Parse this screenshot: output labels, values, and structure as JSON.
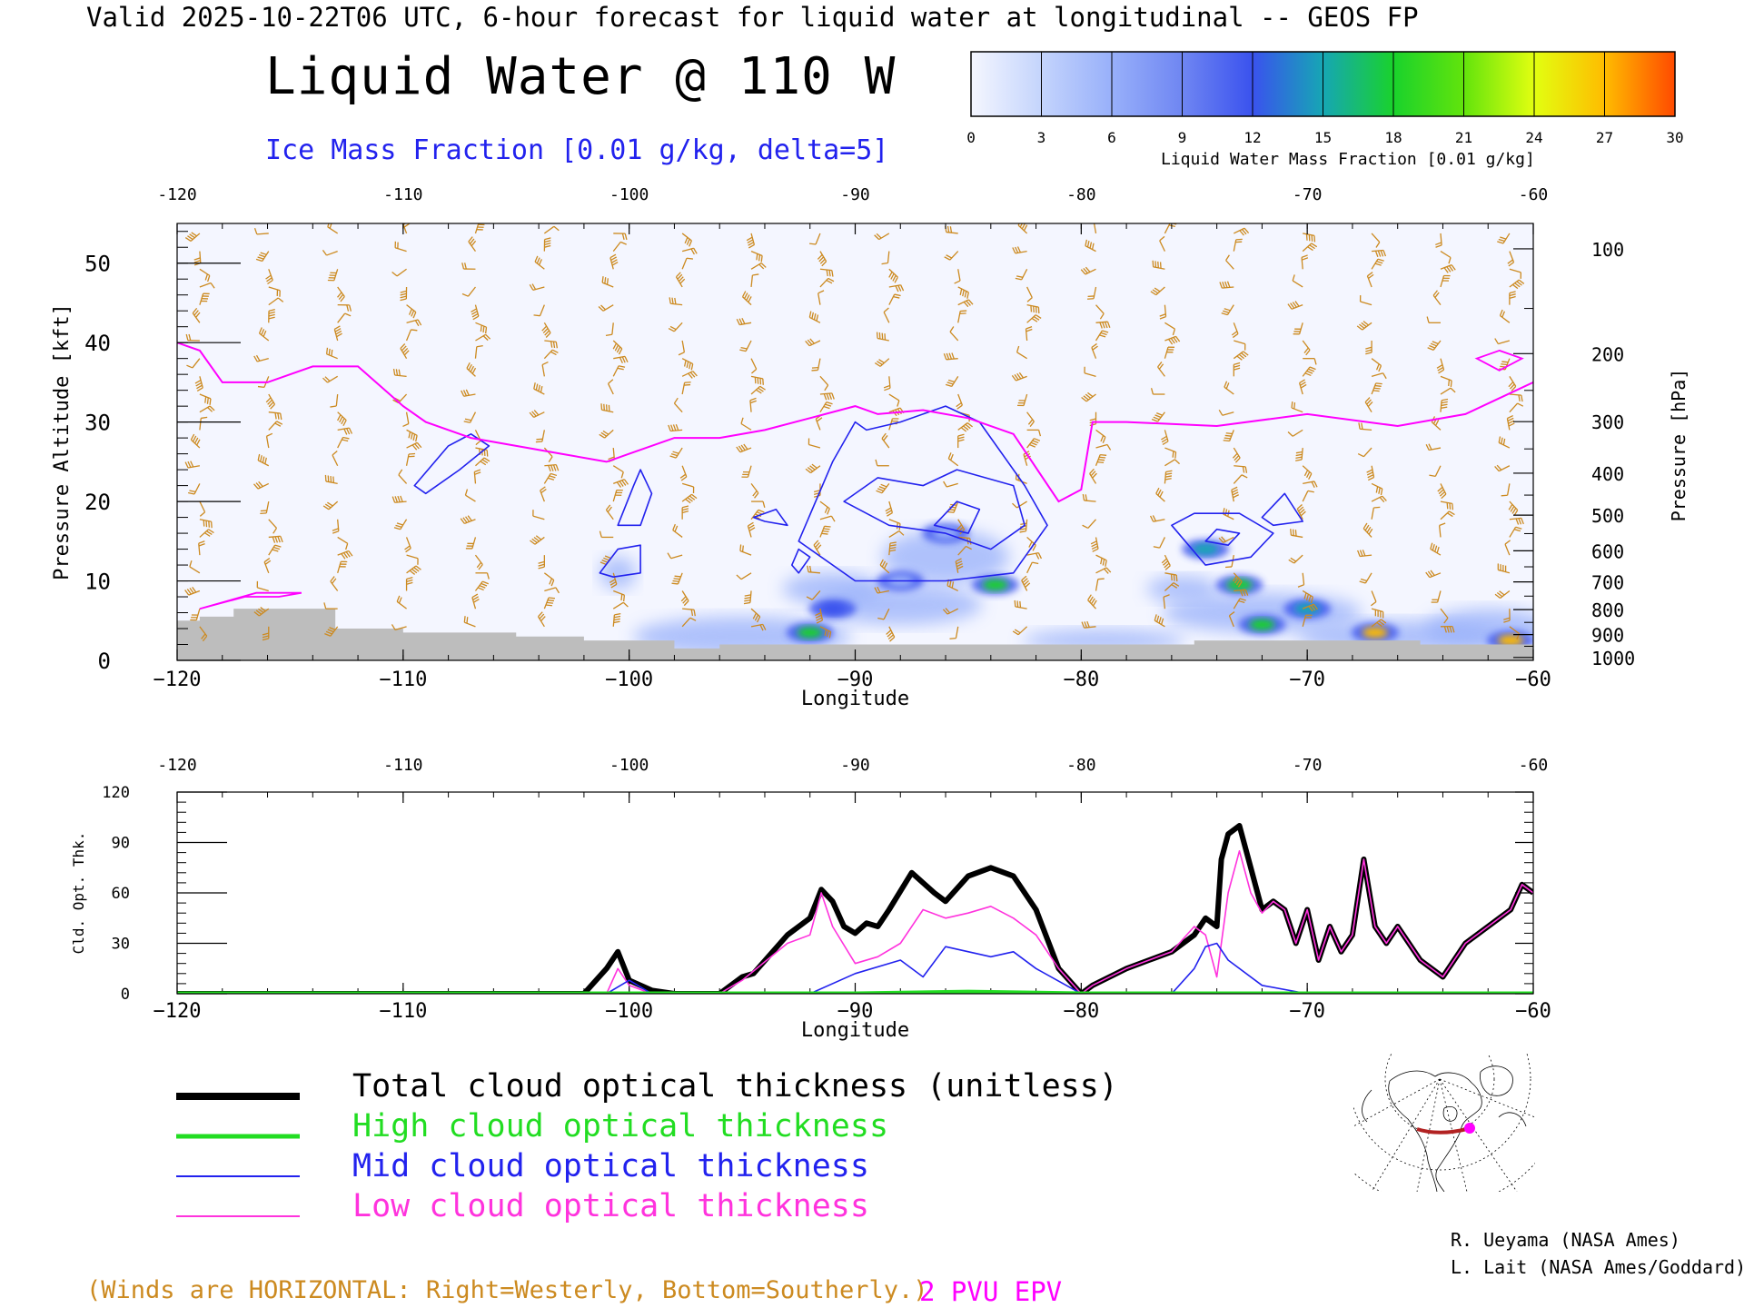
{
  "header": {
    "valid_line": "Valid 2025-10-22T06 UTC, 6-hour forecast for liquid water at longitudinal -- GEOS FP",
    "title": "Liquid Water @ 110 W",
    "subtitle": "Ice Mass Fraction [0.01 g/kg, delta=5]"
  },
  "colorbar": {
    "ticks": [
      "0",
      "3",
      "6",
      "9",
      "12",
      "15",
      "18",
      "21",
      "24",
      "27",
      "30"
    ],
    "label": "Liquid Water Mass Fraction [0.01 g/kg]",
    "colors": [
      "#f4f6ff",
      "#c4d4fc",
      "#98b0fa",
      "#6f86f2",
      "#3a52ee",
      "#16a6b4",
      "#19d22c",
      "#62e40c",
      "#e2ff10",
      "#ffbc00",
      "#ff4a00"
    ]
  },
  "upper_panel": {
    "top_tick_labels": [
      "-120",
      "-110",
      "-100",
      "-90",
      "-80",
      "-70",
      "-60"
    ],
    "bottom_tick_labels": [
      "−120",
      "−110",
      "−100",
      "−90",
      "−80",
      "−70",
      "−60"
    ],
    "xlabel": "Longitude",
    "ylabel_left": "Pressure Altitude [kft]",
    "left_tick_labels": [
      "0",
      "10",
      "20",
      "30",
      "40",
      "50"
    ],
    "ylabel_right": "Pressure [hPa]",
    "right_tick_labels": [
      "100",
      "200",
      "300",
      "400",
      "500",
      "600",
      "700",
      "800",
      "900",
      "1000"
    ]
  },
  "lower_panel": {
    "top_tick_labels": [
      "-120",
      "-110",
      "-100",
      "-90",
      "-80",
      "-70",
      "-60"
    ],
    "bottom_tick_labels": [
      "−120",
      "−110",
      "−100",
      "−90",
      "−80",
      "−70",
      "−60"
    ],
    "xlabel": "Longitude",
    "ylabel": "Cld. Opt. Thk.",
    "left_tick_labels": [
      "0",
      "30",
      "60",
      "90",
      "120"
    ]
  },
  "legend": [
    {
      "label": "Total cloud optical thickness (unitless)",
      "color": "#000000"
    },
    {
      "label": "High cloud optical thickness",
      "color": "#22dd22"
    },
    {
      "label": "Mid cloud optical thickness",
      "color": "#2222ee"
    },
    {
      "label": "Low cloud optical thickness",
      "color": "#ff33dd"
    }
  ],
  "notes": {
    "winds": "(Winds are HORIZONTAL: Right=Westerly, Bottom=Southerly.)",
    "pvu": "2 PVU EPV"
  },
  "credits": {
    "line1": "R. Ueyama (NASA Ames)",
    "line2": "L. Lait (NASA Ames/Goddard)"
  },
  "chart_data": [
    {
      "type": "heatmap",
      "title": "Liquid Water @ 110 W",
      "xlabel": "Longitude",
      "ylabel": "Pressure Altitude [kft]",
      "xlim": [
        -120,
        -60
      ],
      "ylim": [
        0,
        55
      ],
      "colorbar_range": [
        0,
        30
      ],
      "liquid_water_blobs": [
        {
          "lon": -92,
          "alt_kft": 3.5,
          "value": 18
        },
        {
          "lon": -91,
          "alt_kft": 6.5,
          "value": 12
        },
        {
          "lon": -83.8,
          "alt_kft": 9.5,
          "value": 18
        },
        {
          "lon": -74.5,
          "alt_kft": 14,
          "value": 15
        },
        {
          "lon": -73,
          "alt_kft": 9.5,
          "value": 18
        },
        {
          "lon": -72,
          "alt_kft": 4.5,
          "value": 18
        },
        {
          "lon": -70,
          "alt_kft": 6.5,
          "value": 15
        },
        {
          "lon": -67,
          "alt_kft": 3.5,
          "value": 27
        },
        {
          "lon": -61,
          "alt_kft": 2.5,
          "value": 27
        },
        {
          "lon": -86,
          "alt_kft": 16,
          "value": 6
        },
        {
          "lon": -88,
          "alt_kft": 10,
          "value": 6
        }
      ],
      "pvu_2_altitude_kft": {
        "lon": [
          -120,
          -119,
          -118,
          -116,
          -114,
          -112,
          -110,
          -109,
          -107,
          -105,
          -103,
          -101,
          -100,
          -98,
          -96,
          -94,
          -92,
          -90,
          -89,
          -87,
          -85,
          -83,
          -81,
          -80,
          -79.5,
          -78,
          -74,
          -70,
          -66,
          -63,
          -60
        ],
        "alt": [
          40,
          39,
          35,
          35,
          37,
          37,
          32,
          30,
          28,
          27,
          26,
          25,
          26,
          28,
          28,
          29,
          30.5,
          32,
          31,
          31.5,
          30.5,
          28.5,
          20,
          21.5,
          30,
          30,
          29.5,
          31,
          29.5,
          31,
          35
        ]
      },
      "ground_kft": {
        "lon": [
          -120,
          -119,
          -117.5,
          -115,
          -113,
          -110,
          -105,
          -102,
          -98,
          -96,
          -90,
          -80,
          -75,
          -70,
          -65,
          -60
        ],
        "alt": [
          5,
          5.5,
          6.5,
          6.5,
          4,
          3.5,
          3,
          2.5,
          1.5,
          2,
          2,
          2,
          2.5,
          2.5,
          2,
          1.5
        ]
      }
    },
    {
      "type": "line",
      "xlabel": "Longitude",
      "ylabel": "Cld. Opt. Thk.",
      "xlim": [
        -120,
        -60
      ],
      "ylim": [
        0,
        120
      ],
      "series": [
        {
          "name": "Total cloud optical thickness (unitless)",
          "x": [
            -120,
            -110,
            -107,
            -102,
            -101,
            -100.5,
            -100,
            -99,
            -98,
            -96,
            -95,
            -94.5,
            -93,
            -92,
            -91.5,
            -91,
            -90.5,
            -90,
            -89.5,
            -89,
            -88.5,
            -87.5,
            -86.5,
            -86,
            -85,
            -84,
            -83,
            -82,
            -81,
            -80,
            -79.5,
            -78,
            -77,
            -76,
            -75,
            -74.5,
            -74,
            -73.8,
            -73.5,
            -73,
            -72.5,
            -72,
            -71.5,
            -71,
            -70.5,
            -70,
            -69.5,
            -69,
            -68.5,
            -68,
            -67.5,
            -67,
            -66.5,
            -66,
            -65,
            -64,
            -63,
            -62,
            -61,
            -60.5,
            -60
          ],
          "y": [
            0,
            0,
            0,
            0,
            15,
            25,
            8,
            2,
            0,
            0,
            10,
            12,
            35,
            45,
            62,
            55,
            40,
            36,
            42,
            40,
            50,
            72,
            60,
            55,
            70,
            75,
            70,
            50,
            15,
            0,
            5,
            15,
            20,
            25,
            35,
            45,
            40,
            80,
            95,
            100,
            75,
            50,
            55,
            50,
            30,
            50,
            20,
            40,
            25,
            35,
            80,
            40,
            30,
            40,
            20,
            10,
            30,
            40,
            50,
            65,
            60
          ]
        },
        {
          "name": "High cloud optical thickness",
          "x": [
            -120,
            -90,
            -85,
            -80,
            -60
          ],
          "y": [
            0,
            0,
            1,
            0,
            0
          ]
        },
        {
          "name": "Mid cloud optical thickness",
          "x": [
            -120,
            -101,
            -100,
            -99,
            -92,
            -90,
            -88,
            -87,
            -86,
            -84,
            -83,
            -82,
            -80,
            -76,
            -75,
            -74.5,
            -74,
            -73.5,
            -72,
            -70,
            -60
          ],
          "y": [
            0,
            0,
            8,
            0,
            0,
            12,
            20,
            10,
            28,
            22,
            25,
            15,
            0,
            0,
            15,
            28,
            30,
            20,
            5,
            0,
            0
          ]
        },
        {
          "name": "Low cloud optical thickness",
          "x": [
            -120,
            -101,
            -100.5,
            -100,
            -99,
            -96,
            -95,
            -93,
            -92,
            -91.5,
            -91,
            -90,
            -89,
            -88,
            -87,
            -86,
            -85,
            -84,
            -83,
            -82,
            -81,
            -80,
            -79.5,
            -78,
            -77,
            -76,
            -75,
            -74.5,
            -74,
            -73.5,
            -73,
            -72.5,
            -72,
            -71.5,
            -71,
            -70.5,
            -70,
            -69.5,
            -69,
            -68.5,
            -68,
            -67.5,
            -67,
            -66.5,
            -66,
            -65,
            -64,
            -63,
            -62,
            -61,
            -60.5,
            -60
          ],
          "y": [
            0,
            0,
            15,
            5,
            0,
            0,
            8,
            30,
            35,
            60,
            40,
            18,
            22,
            30,
            50,
            45,
            48,
            52,
            45,
            35,
            15,
            0,
            5,
            15,
            20,
            25,
            40,
            35,
            10,
            60,
            85,
            60,
            48,
            55,
            50,
            30,
            50,
            20,
            40,
            25,
            35,
            80,
            40,
            30,
            40,
            20,
            10,
            30,
            40,
            50,
            65,
            60
          ]
        }
      ]
    }
  ]
}
